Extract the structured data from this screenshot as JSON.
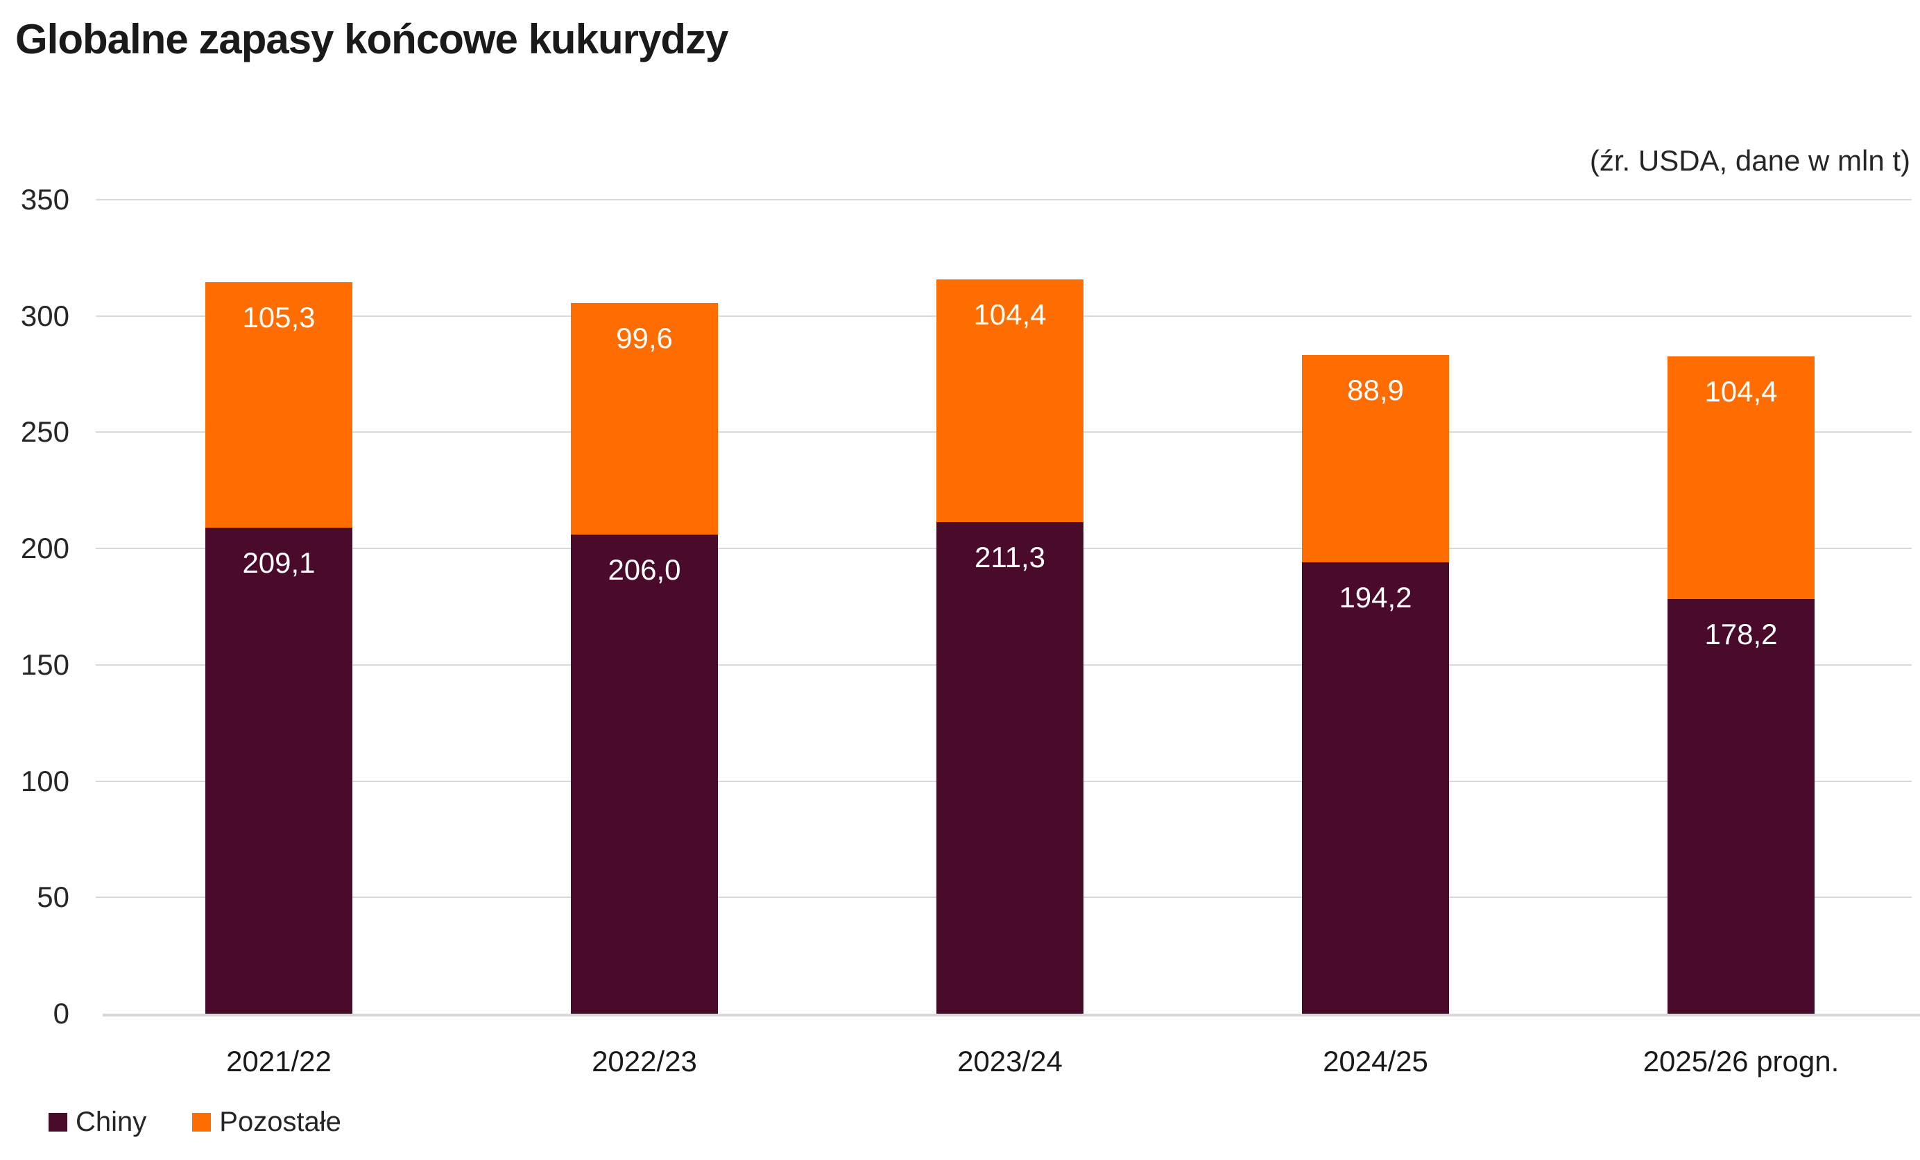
{
  "title": "Globalne zapasy końcowe kukurydzy",
  "source_note": "(źr. USDA, dane w mln t)",
  "colors": {
    "chiny": "#4A0A2A",
    "pozostale": "#FF6C00",
    "grid": "#D9D9D9",
    "text": "#262626",
    "value_label": "#FFFFFF"
  },
  "chart_data": {
    "type": "bar",
    "stacked": true,
    "title": "Globalne zapasy końcowe kukurydzy",
    "subtitle": "(źr. USDA, dane w mln t)",
    "unit": "mln t",
    "categories": [
      "2021/22",
      "2022/23",
      "2023/24",
      "2024/25",
      "2025/26 progn."
    ],
    "series": [
      {
        "name": "Chiny",
        "color_key": "chiny",
        "values": [
          209.1,
          206.0,
          211.3,
          194.2,
          178.2
        ],
        "labels": [
          "209,1",
          "206,0",
          "211,3",
          "194,2",
          "178,2"
        ]
      },
      {
        "name": "Pozostałe",
        "color_key": "pozostale",
        "values": [
          105.3,
          99.6,
          104.4,
          88.9,
          104.4
        ],
        "labels": [
          "105,3",
          "99,6",
          "104,4",
          "88,9",
          "104,4"
        ]
      }
    ],
    "ylim": [
      0,
      350
    ],
    "ytick_step": 50,
    "yticks": [
      "0",
      "50",
      "100",
      "150",
      "200",
      "250",
      "300",
      "350"
    ],
    "xlabel": "",
    "ylabel": "",
    "grid": true,
    "legend_position": "bottom-left"
  },
  "legend": {
    "items": [
      {
        "label": "Chiny",
        "color_key": "chiny"
      },
      {
        "label": "Pozostałe",
        "color_key": "pozostale"
      }
    ]
  }
}
